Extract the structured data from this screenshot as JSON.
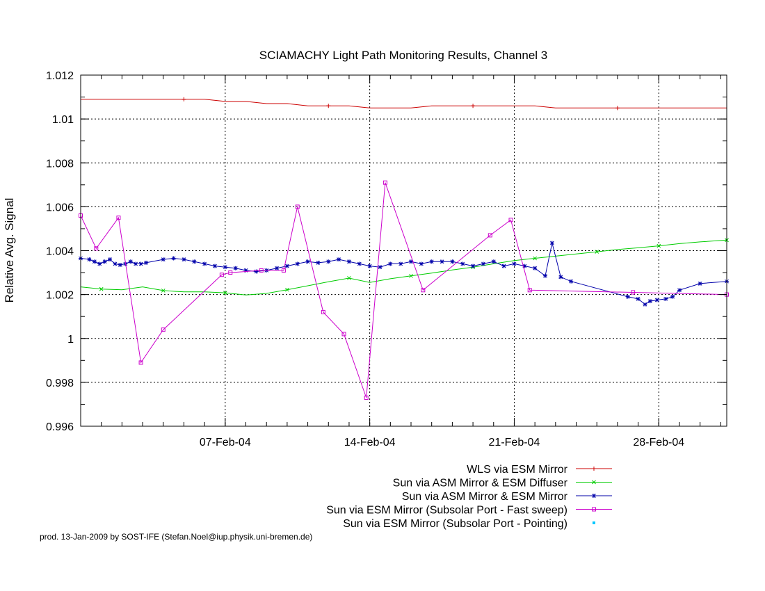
{
  "chart_data": {
    "type": "line",
    "title": "SCIAMACHY Light Path Monitoring Results, Channel 3",
    "xlabel": "",
    "ylabel": "Relative Avg. Signal",
    "xlim": [
      "2004-01-31 00:00",
      "2004-03-02 07:00"
    ],
    "ylim": [
      0.996,
      1.012
    ],
    "grid": true,
    "legend_position": "bottom-right",
    "y_ticks": [
      {
        "value": 0.996,
        "label": "0.996"
      },
      {
        "value": 0.998,
        "label": "0.998"
      },
      {
        "value": 1.0,
        "label": "1"
      },
      {
        "value": 1.002,
        "label": "1.002"
      },
      {
        "value": 1.004,
        "label": "1.004"
      },
      {
        "value": 1.006,
        "label": "1.006"
      },
      {
        "value": 1.008,
        "label": "1.008"
      },
      {
        "value": 1.01,
        "label": "1.01"
      },
      {
        "value": 1.012,
        "label": "1.012"
      }
    ],
    "x_ticks": [
      {
        "value": "2004-02-07",
        "label": "07-Feb-04"
      },
      {
        "value": "2004-02-14",
        "label": "14-Feb-04"
      },
      {
        "value": "2004-02-21",
        "label": "21-Feb-04"
      },
      {
        "value": "2004-02-28",
        "label": "28-Feb-04"
      }
    ],
    "series": [
      {
        "name": "WLS via ESM Mirror",
        "color": "#cc0000",
        "marker": "plus",
        "points": [
          [
            "2004-01-31 00:00",
            1.0109
          ],
          [
            "2004-02-01 00:00",
            1.0109
          ],
          [
            "2004-02-02 00:00",
            1.0109
          ],
          [
            "2004-02-03 00:00",
            1.0109
          ],
          [
            "2004-02-04 00:00",
            1.0109
          ],
          [
            "2004-02-05 00:00",
            1.0109
          ],
          [
            "2004-02-06 00:00",
            1.0109
          ],
          [
            "2004-02-07 00:00",
            1.0108
          ],
          [
            "2004-02-08 00:00",
            1.0108
          ],
          [
            "2004-02-09 00:00",
            1.0107
          ],
          [
            "2004-02-10 00:00",
            1.0107
          ],
          [
            "2004-02-11 00:00",
            1.0106
          ],
          [
            "2004-02-12 00:00",
            1.0106
          ],
          [
            "2004-02-13 00:00",
            1.0106
          ],
          [
            "2004-02-14 00:00",
            1.0105
          ],
          [
            "2004-02-15 00:00",
            1.0105
          ],
          [
            "2004-02-16 00:00",
            1.0105
          ],
          [
            "2004-02-17 00:00",
            1.0106
          ],
          [
            "2004-02-18 00:00",
            1.0106
          ],
          [
            "2004-02-19 00:00",
            1.0106
          ],
          [
            "2004-02-20 00:00",
            1.0106
          ],
          [
            "2004-02-21 00:00",
            1.0106
          ],
          [
            "2004-02-22 00:00",
            1.0106
          ],
          [
            "2004-02-23 00:00",
            1.0105
          ],
          [
            "2004-02-24 00:00",
            1.0105
          ],
          [
            "2004-02-25 00:00",
            1.0105
          ],
          [
            "2004-02-26 00:00",
            1.0105
          ],
          [
            "2004-02-27 00:00",
            1.0105
          ],
          [
            "2004-02-28 00:00",
            1.0105
          ],
          [
            "2004-02-29 00:00",
            1.0105
          ],
          [
            "2004-03-01 00:00",
            1.0105
          ],
          [
            "2004-03-02 07:00",
            1.0105
          ]
        ]
      },
      {
        "name": "Sun via ASM Mirror & ESM Diffuser",
        "color": "#00cc00",
        "marker": "cross",
        "points": [
          [
            "2004-01-31 00:00",
            1.00235
          ],
          [
            "2004-02-01 00:00",
            1.00225
          ],
          [
            "2004-02-02 00:00",
            1.00222
          ],
          [
            "2004-02-03 00:00",
            1.00235
          ],
          [
            "2004-02-04 00:00",
            1.00218
          ],
          [
            "2004-02-05 00:00",
            1.00212
          ],
          [
            "2004-02-06 00:00",
            1.00212
          ],
          [
            "2004-02-07 00:00",
            1.00208
          ],
          [
            "2004-02-08 00:00",
            1.00198
          ],
          [
            "2004-02-09 00:00",
            1.00205
          ],
          [
            "2004-02-10 00:00",
            1.00222
          ],
          [
            "2004-02-11 00:00",
            1.0024
          ],
          [
            "2004-02-12 00:00",
            1.00258
          ],
          [
            "2004-02-13 00:00",
            1.00275
          ],
          [
            "2004-02-14 00:00",
            1.00255
          ],
          [
            "2004-02-15 00:00",
            1.00272
          ],
          [
            "2004-02-16 00:00",
            1.00285
          ],
          [
            "2004-02-17 00:00",
            1.00298
          ],
          [
            "2004-02-18 00:00",
            1.00312
          ],
          [
            "2004-02-19 00:00",
            1.00325
          ],
          [
            "2004-02-20 00:00",
            1.0034
          ],
          [
            "2004-02-21 00:00",
            1.00355
          ],
          [
            "2004-02-22 00:00",
            1.00365
          ],
          [
            "2004-02-23 00:00",
            1.00375
          ],
          [
            "2004-02-24 00:00",
            1.00385
          ],
          [
            "2004-02-25 00:00",
            1.00395
          ],
          [
            "2004-02-26 00:00",
            1.00405
          ],
          [
            "2004-02-27 00:00",
            1.00413
          ],
          [
            "2004-02-28 00:00",
            1.00422
          ],
          [
            "2004-02-29 00:00",
            1.00432
          ],
          [
            "2004-03-01 00:00",
            1.0044
          ],
          [
            "2004-03-02 07:00",
            1.00448
          ]
        ]
      },
      {
        "name": "Sun via ASM Mirror & ESM Mirror",
        "color": "#0000aa",
        "marker": "star",
        "points": [
          [
            "2004-01-31 00:00",
            1.00365
          ],
          [
            "2004-01-31 10:00",
            1.0036
          ],
          [
            "2004-01-31 16:00",
            1.0035
          ],
          [
            "2004-01-31 22:00",
            1.0034
          ],
          [
            "2004-02-01 04:00",
            1.0035
          ],
          [
            "2004-02-01 10:00",
            1.0036
          ],
          [
            "2004-02-01 16:00",
            1.0034
          ],
          [
            "2004-02-01 22:00",
            1.00335
          ],
          [
            "2004-02-02 04:00",
            1.0034
          ],
          [
            "2004-02-02 10:00",
            1.0035
          ],
          [
            "2004-02-02 16:00",
            1.0034
          ],
          [
            "2004-02-02 22:00",
            1.0034
          ],
          [
            "2004-02-03 04:00",
            1.00345
          ],
          [
            "2004-02-04 00:00",
            1.0036
          ],
          [
            "2004-02-04 12:00",
            1.00365
          ],
          [
            "2004-02-05 00:00",
            1.0036
          ],
          [
            "2004-02-05 12:00",
            1.0035
          ],
          [
            "2004-02-06 00:00",
            1.0034
          ],
          [
            "2004-02-06 12:00",
            1.0033
          ],
          [
            "2004-02-07 00:00",
            1.00325
          ],
          [
            "2004-02-07 12:00",
            1.0032
          ],
          [
            "2004-02-08 00:00",
            1.0031
          ],
          [
            "2004-02-08 12:00",
            1.00305
          ],
          [
            "2004-02-09 00:00",
            1.0031
          ],
          [
            "2004-02-09 12:00",
            1.0032
          ],
          [
            "2004-02-10 00:00",
            1.0033
          ],
          [
            "2004-02-10 12:00",
            1.0034
          ],
          [
            "2004-02-11 00:00",
            1.0035
          ],
          [
            "2004-02-11 12:00",
            1.00345
          ],
          [
            "2004-02-12 00:00",
            1.0035
          ],
          [
            "2004-02-12 12:00",
            1.0036
          ],
          [
            "2004-02-13 00:00",
            1.0035
          ],
          [
            "2004-02-13 12:00",
            1.0034
          ],
          [
            "2004-02-14 00:00",
            1.0033
          ],
          [
            "2004-02-14 12:00",
            1.00325
          ],
          [
            "2004-02-15 00:00",
            1.0034
          ],
          [
            "2004-02-15 12:00",
            1.0034
          ],
          [
            "2004-02-16 00:00",
            1.0035
          ],
          [
            "2004-02-16 12:00",
            1.0034
          ],
          [
            "2004-02-17 00:00",
            1.0035
          ],
          [
            "2004-02-17 12:00",
            1.0035
          ],
          [
            "2004-02-18 00:00",
            1.0035
          ],
          [
            "2004-02-18 12:00",
            1.0034
          ],
          [
            "2004-02-19 00:00",
            1.0033
          ],
          [
            "2004-02-19 12:00",
            1.0034
          ],
          [
            "2004-02-20 00:00",
            1.0035
          ],
          [
            "2004-02-20 12:00",
            1.0033
          ],
          [
            "2004-02-21 00:00",
            1.0034
          ],
          [
            "2004-02-21 12:00",
            1.0033
          ],
          [
            "2004-02-22 00:00",
            1.0032
          ],
          [
            "2004-02-22 12:00",
            1.00285
          ],
          [
            "2004-02-22 20:00",
            1.00435
          ],
          [
            "2004-02-23 06:00",
            1.0028
          ],
          [
            "2004-02-23 18:00",
            1.0026
          ],
          [
            "2004-02-26 12:00",
            1.0019
          ],
          [
            "2004-02-27 00:00",
            1.0018
          ],
          [
            "2004-02-27 08:00",
            1.00155
          ],
          [
            "2004-02-27 14:00",
            1.0017
          ],
          [
            "2004-02-27 22:00",
            1.00175
          ],
          [
            "2004-02-28 08:00",
            1.0018
          ],
          [
            "2004-02-28 16:00",
            1.0019
          ],
          [
            "2004-02-29 00:00",
            1.0022
          ],
          [
            "2004-03-01 00:00",
            1.0025
          ],
          [
            "2004-03-02 07:00",
            1.0026
          ]
        ]
      },
      {
        "name": "Sun via ESM Mirror (Subsolar Port - Fast sweep)",
        "color": "#cc00cc",
        "marker": "square",
        "points": [
          [
            "2004-01-31 00:00",
            1.0056
          ],
          [
            "2004-01-31 18:00",
            1.0041
          ],
          [
            "2004-02-01 20:00",
            1.0055
          ],
          [
            "2004-02-02 22:00",
            0.9989
          ],
          [
            "2004-02-04 00:00",
            1.0004
          ],
          [
            "2004-02-06 20:00",
            1.0029
          ],
          [
            "2004-02-07 06:00",
            1.003
          ],
          [
            "2004-02-08 18:00",
            1.0031
          ],
          [
            "2004-02-09 20:00",
            1.0031
          ],
          [
            "2004-02-10 12:00",
            1.006
          ],
          [
            "2004-02-11 18:00",
            1.0012
          ],
          [
            "2004-02-12 18:00",
            1.0002
          ],
          [
            "2004-02-13 20:00",
            0.9973
          ],
          [
            "2004-02-14 18:00",
            1.0071
          ],
          [
            "2004-02-16 14:00",
            1.0022
          ],
          [
            "2004-02-19 20:00",
            1.0047
          ],
          [
            "2004-02-20 20:00",
            1.0054
          ],
          [
            "2004-02-21 18:00",
            1.0022
          ],
          [
            "2004-02-26 18:00",
            1.0021
          ],
          [
            "2004-03-02 07:00",
            1.002
          ]
        ]
      },
      {
        "name": "Sun via ESM Mirror (Subsolar Port - Pointing)",
        "color": "#00c8ff",
        "marker": "dot",
        "points": []
      }
    ],
    "footer": "prod. 13-Jan-2009 by SOST-IFE (Stefan.Noel@iup.physik.uni-bremen.de)"
  }
}
